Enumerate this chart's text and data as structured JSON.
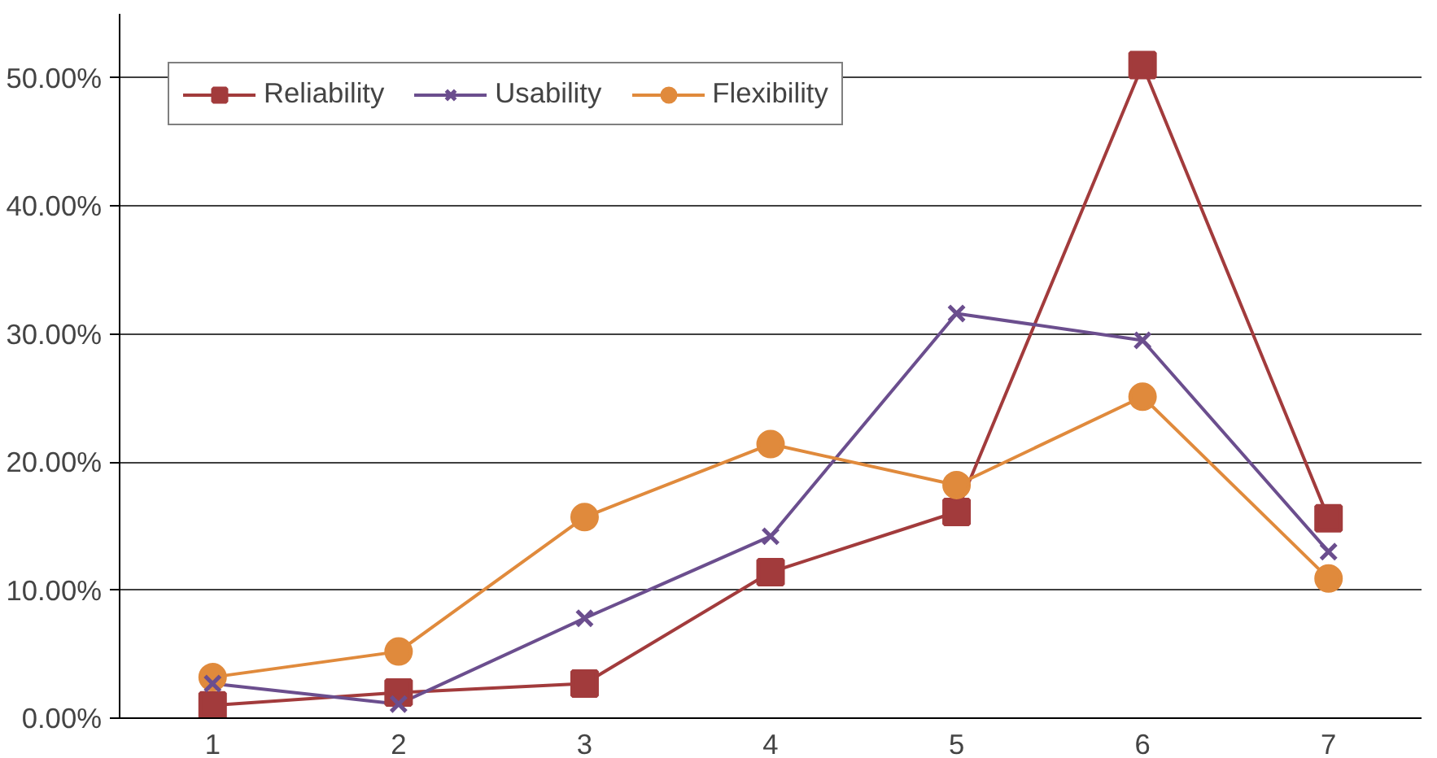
{
  "chart_data": {
    "type": "line",
    "categories": [
      "1",
      "2",
      "3",
      "4",
      "5",
      "6",
      "7"
    ],
    "series": [
      {
        "name": "Reliability",
        "color": "#a23b3c",
        "marker": "square",
        "values": [
          1.0,
          2.0,
          2.7,
          11.4,
          16.1,
          51.0,
          15.6
        ]
      },
      {
        "name": "Usability",
        "color": "#6b4e8e",
        "marker": "cross",
        "values": [
          2.7,
          1.1,
          7.8,
          14.2,
          31.6,
          29.5,
          13.0
        ]
      },
      {
        "name": "Flexibility",
        "color": "#e08a3c",
        "marker": "circle",
        "values": [
          3.2,
          5.2,
          15.7,
          21.4,
          18.2,
          25.1,
          10.9
        ]
      }
    ],
    "ylim": [
      0,
      55
    ],
    "yticks": [
      {
        "value": 0,
        "label": "0.00%"
      },
      {
        "value": 10,
        "label": "10.00%"
      },
      {
        "value": 20,
        "label": "20.00%"
      },
      {
        "value": 30,
        "label": "30.00%"
      },
      {
        "value": 40,
        "label": "40.00%"
      },
      {
        "value": 50,
        "label": "50.00%"
      }
    ],
    "grid": "y",
    "legend": "top left"
  }
}
